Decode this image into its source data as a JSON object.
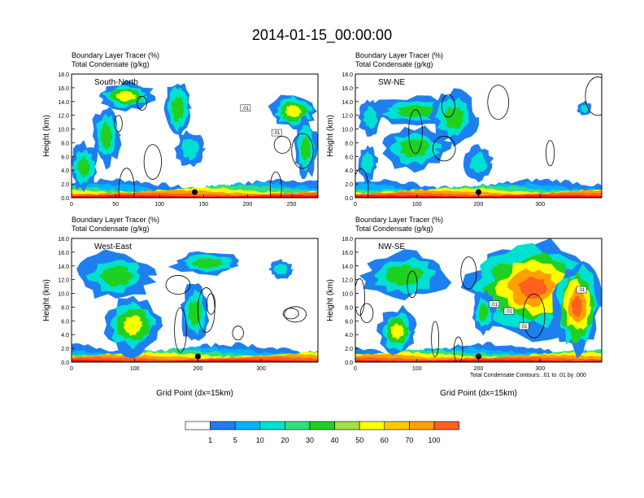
{
  "title": "2014-01-15_00:00:00",
  "colors": {
    "levels": [
      "#ffffff",
      "#1e7ff0",
      "#00b4ff",
      "#00e0d0",
      "#30e080",
      "#20d020",
      "#a0e040",
      "#ffff00",
      "#ffc800",
      "#ffa000",
      "#ff6020",
      "#ff1010"
    ]
  },
  "colorbar": {
    "labels": [
      "1",
      "5",
      "10",
      "20",
      "30",
      "40",
      "50",
      "60",
      "70",
      "100"
    ]
  },
  "note": "Total Condensate Contours: .01 to .01 by .000",
  "chart_data": [
    {
      "type": "heatmap",
      "label": "South-North",
      "header1": "Boundary Layer Tracer   (%)",
      "header2": "Total Condensate   (g/kg)",
      "ylabel": "Height (km)",
      "xlabel": "",
      "xlim": [
        0,
        280
      ],
      "ylim": [
        0,
        18
      ],
      "xticks": [
        0,
        50,
        100,
        150,
        200,
        250
      ],
      "yticks": [
        "0.0",
        "2.0",
        "4.0",
        "6.0",
        "8.0",
        "10.0",
        "12.0",
        "14.0",
        "16.0",
        "18.0"
      ],
      "marker_x": 140,
      "contour_labels": [
        ".01",
        ".01"
      ]
    },
    {
      "type": "heatmap",
      "label": "SW-NE",
      "header1": "Boundary Layer Tracer   (%)",
      "header2": "Total Condensate   (g/kg)",
      "ylabel": "Height (km)",
      "xlabel": "",
      "xlim": [
        0,
        400
      ],
      "ylim": [
        0,
        18
      ],
      "xticks": [
        0,
        100,
        200,
        300
      ],
      "yticks": [
        "0.0",
        "2.0",
        "4.0",
        "6.0",
        "8.0",
        "10.0",
        "12.0",
        "14.0",
        "16.0",
        "18.0"
      ],
      "marker_x": 200,
      "contour_labels": []
    },
    {
      "type": "heatmap",
      "label": "West-East",
      "header1": "Boundary Layer Tracer   (%)",
      "header2": "Total Condensate   (g/kg)",
      "ylabel": "Height (km)",
      "xlabel": "Grid Point (dx=15km)",
      "xlim": [
        0,
        390
      ],
      "ylim": [
        0,
        18
      ],
      "xticks": [
        0,
        100,
        200,
        300
      ],
      "yticks": [
        "0.0",
        "2.0",
        "4.0",
        "6.0",
        "8.0",
        "10.0",
        "12.0",
        "14.0",
        "16.0",
        "18.0"
      ],
      "marker_x": 200,
      "contour_labels": []
    },
    {
      "type": "heatmap",
      "label": "NW-SE",
      "header1": "Boundary Layer Tracer   (%)",
      "header2": "Total Condensate   (g/kg)",
      "ylabel": "Height (km)",
      "xlabel": "Grid Point (dx=15km)",
      "xlim": [
        0,
        400
      ],
      "ylim": [
        0,
        18
      ],
      "xticks": [
        0,
        100,
        200,
        300
      ],
      "yticks": [
        "0.0",
        "2.0",
        "4.0",
        "6.0",
        "8.0",
        "10.0",
        "12.0",
        "14.0",
        "16.0",
        "18.0"
      ],
      "marker_x": 200,
      "contour_labels": [
        ".01",
        ".01",
        ".01",
        ".01"
      ]
    }
  ]
}
